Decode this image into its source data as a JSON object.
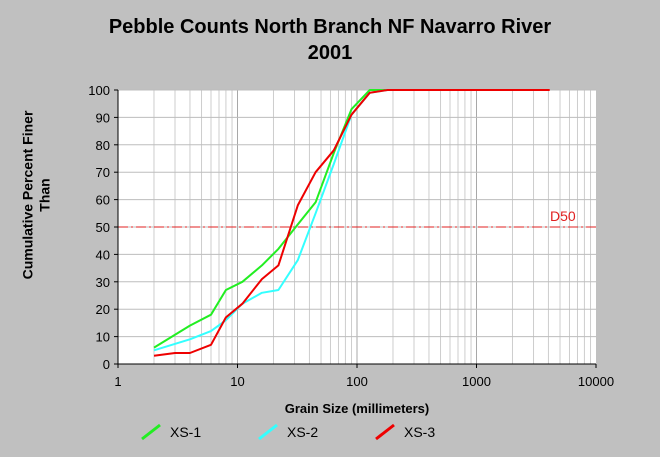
{
  "chart_data": {
    "type": "line",
    "title": [
      "Pebble Counts North Branch NF Navarro River",
      "2001"
    ],
    "xlabel": "Grain Size (millimeters)",
    "ylabel": [
      "Cumulative Percent Finer",
      "Than"
    ],
    "x_scale": "log",
    "xlim": [
      1,
      10000
    ],
    "ylim": [
      0,
      100
    ],
    "x_ticks": [
      {
        "value": 1,
        "label": "1"
      },
      {
        "value": 10,
        "label": "10"
      },
      {
        "value": 100,
        "label": "100"
      },
      {
        "value": 1000,
        "label": "1000"
      },
      {
        "value": 10000,
        "label": "10000"
      }
    ],
    "y_ticks": [
      0,
      10,
      20,
      30,
      40,
      50,
      60,
      70,
      80,
      90,
      100
    ],
    "grid": true,
    "legend_position": "bottom",
    "reference_line": {
      "label": "D50",
      "y": 50,
      "color": "#e02020"
    },
    "series": [
      {
        "name": "XS-1",
        "color": "#22ee22",
        "points": [
          [
            2,
            6
          ],
          [
            4,
            14
          ],
          [
            6,
            18
          ],
          [
            8,
            27
          ],
          [
            11,
            30
          ],
          [
            16,
            36
          ],
          [
            22,
            42
          ],
          [
            32,
            51
          ],
          [
            45,
            59
          ],
          [
            64,
            77
          ],
          [
            90,
            93
          ],
          [
            128,
            100
          ],
          [
            180,
            100
          ]
        ]
      },
      {
        "name": "XS-2",
        "color": "#33ffff",
        "points": [
          [
            2,
            5
          ],
          [
            4,
            9
          ],
          [
            6,
            12
          ],
          [
            8,
            16
          ],
          [
            11,
            22
          ],
          [
            16,
            26
          ],
          [
            22,
            27
          ],
          [
            32,
            38
          ],
          [
            45,
            55
          ],
          [
            64,
            73
          ],
          [
            90,
            91
          ],
          [
            128,
            99
          ],
          [
            180,
            100
          ]
        ]
      },
      {
        "name": "XS-3",
        "color": "#ee0000",
        "points": [
          [
            2,
            3
          ],
          [
            3,
            4
          ],
          [
            4,
            4
          ],
          [
            6,
            7
          ],
          [
            8,
            17
          ],
          [
            11,
            22
          ],
          [
            16,
            31
          ],
          [
            22,
            36
          ],
          [
            32,
            58
          ],
          [
            45,
            70
          ],
          [
            64,
            78
          ],
          [
            90,
            91
          ],
          [
            128,
            99
          ],
          [
            180,
            100
          ],
          [
            4096,
            100
          ]
        ]
      }
    ]
  }
}
